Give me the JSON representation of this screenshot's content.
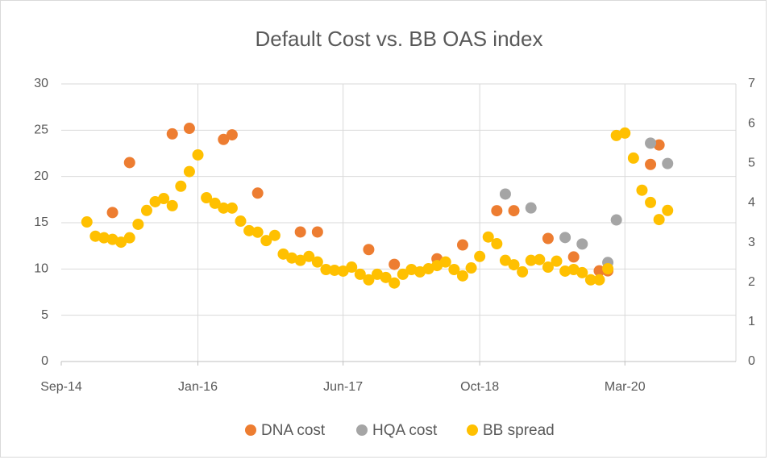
{
  "chart_data": {
    "type": "scatter",
    "title": "Default Cost vs. BB OAS index",
    "xlim": [
      "2014-09",
      "2021-04"
    ],
    "xticks": [
      {
        "value": "2014-09",
        "label": "Sep-14"
      },
      {
        "value": "2016-01",
        "label": "Jan-16"
      },
      {
        "value": "2017-06",
        "label": "Jun-17"
      },
      {
        "value": "2018-10",
        "label": "Oct-18"
      },
      {
        "value": "2020-03",
        "label": "Mar-20"
      }
    ],
    "ylim": [
      0,
      30
    ],
    "yticks": [
      0,
      5,
      10,
      15,
      20,
      25,
      30
    ],
    "y2lim": [
      0,
      7
    ],
    "y2ticks": [
      0,
      1,
      2,
      3,
      4,
      5,
      6,
      7
    ],
    "grid": true,
    "legend": "bottom",
    "series": [
      {
        "name": "DNA cost",
        "color": "#ed7d31",
        "x": [
          "2015-03",
          "2015-05",
          "2015-10",
          "2015-12",
          "2016-04",
          "2016-05",
          "2016-08",
          "2017-01",
          "2017-03",
          "2017-09",
          "2017-12",
          "2018-05",
          "2018-08",
          "2018-12",
          "2019-02",
          "2019-06",
          "2019-09",
          "2019-12",
          "2020-01",
          "2020-06",
          "2020-07"
        ],
        "values": [
          16.1,
          21.5,
          24.6,
          25.2,
          24.0,
          24.5,
          18.2,
          14.0,
          14.0,
          12.1,
          10.5,
          11.1,
          12.6,
          16.3,
          16.3,
          13.3,
          11.3,
          9.8,
          9.8,
          21.3,
          23.4
        ]
      },
      {
        "name": "HQA cost",
        "color": "#a5a5a5",
        "x": [
          "2019-01",
          "2019-04",
          "2019-08",
          "2019-10",
          "2020-01",
          "2020-02",
          "2020-06",
          "2020-08"
        ],
        "values": [
          18.1,
          16.6,
          13.4,
          12.7,
          10.7,
          15.3,
          23.6,
          21.4
        ]
      },
      {
        "name": "BB spread",
        "color": "#ffc000",
        "axis": "y2",
        "x": [
          "2014-12",
          "2015-01",
          "2015-02",
          "2015-03",
          "2015-04",
          "2015-05",
          "2015-06",
          "2015-07",
          "2015-08",
          "2015-09",
          "2015-10",
          "2015-11",
          "2015-12",
          "2016-01",
          "2016-02",
          "2016-03",
          "2016-04",
          "2016-05",
          "2016-06",
          "2016-07",
          "2016-08",
          "2016-09",
          "2016-10",
          "2016-11",
          "2016-12",
          "2017-01",
          "2017-02",
          "2017-03",
          "2017-04",
          "2017-05",
          "2017-06",
          "2017-07",
          "2017-08",
          "2017-09",
          "2017-10",
          "2017-11",
          "2017-12",
          "2018-01",
          "2018-02",
          "2018-03",
          "2018-04",
          "2018-05",
          "2018-06",
          "2018-07",
          "2018-08",
          "2018-09",
          "2018-10",
          "2018-11",
          "2018-12",
          "2019-01",
          "2019-02",
          "2019-03",
          "2019-04",
          "2019-05",
          "2019-06",
          "2019-07",
          "2019-08",
          "2019-09",
          "2019-10",
          "2019-11",
          "2019-12",
          "2020-01",
          "2020-02",
          "2020-03",
          "2020-04",
          "2020-05",
          "2020-06",
          "2020-07",
          "2020-08"
        ],
        "values": [
          3.52,
          3.16,
          3.12,
          3.08,
          3.01,
          3.12,
          3.46,
          3.81,
          4.03,
          4.11,
          3.93,
          4.42,
          4.79,
          5.21,
          4.13,
          3.99,
          3.87,
          3.87,
          3.54,
          3.3,
          3.26,
          3.05,
          3.18,
          2.71,
          2.61,
          2.55,
          2.65,
          2.51,
          2.32,
          2.3,
          2.28,
          2.38,
          2.2,
          2.06,
          2.2,
          2.12,
          1.98,
          2.2,
          2.32,
          2.26,
          2.34,
          2.42,
          2.51,
          2.32,
          2.16,
          2.36,
          2.65,
          3.14,
          2.97,
          2.55,
          2.44,
          2.26,
          2.55,
          2.57,
          2.38,
          2.53,
          2.28,
          2.32,
          2.24,
          2.06,
          2.06,
          2.34,
          5.7,
          5.76,
          5.13,
          4.32,
          4.01,
          3.58,
          3.81
        ]
      }
    ]
  }
}
